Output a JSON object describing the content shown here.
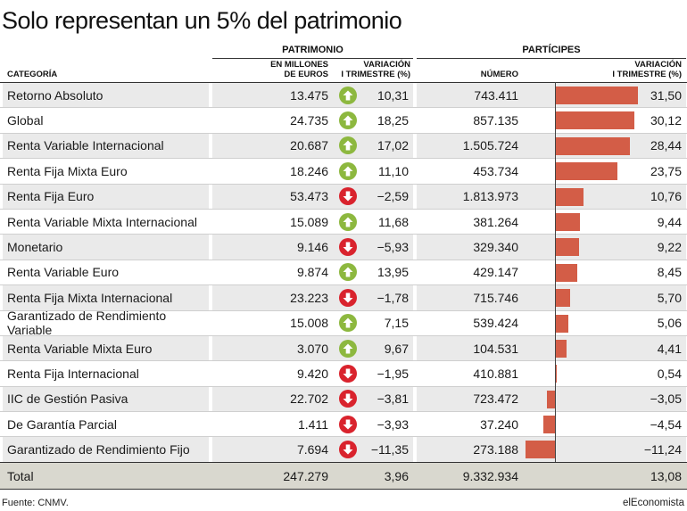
{
  "title": "Solo representan un 5% del patrimonio",
  "headers": {
    "group_patrimonio": "PATRIMONIO",
    "group_participes": "PARTÍCIPES",
    "categoria": "CATEGORÍA",
    "millones_l1": "EN MILLONES",
    "millones_l2": "DE EUROS",
    "variacion_l1": "VARIACIÓN",
    "variacion_l2": "I TRIMESTRE (%)",
    "numero": "NÚMERO",
    "variacion2_l1": "VARIACIÓN",
    "variacion2_l2": "I TRIMESTRE (%)"
  },
  "colors": {
    "bar": "#d35d47",
    "up": "#8db83f",
    "down": "#d9232d",
    "total_bg": "#d9d8cf",
    "alt_row": "#eaeaea"
  },
  "icons": {
    "up": "arrow-up-icon",
    "down": "arrow-down-icon"
  },
  "chart_data": {
    "type": "table",
    "columns": [
      "Categoría",
      "Patrimonio en millones de euros",
      "Variación I trimestre (%)",
      "Partícipes número",
      "Partícipes variación I trimestre (%)"
    ],
    "bar_column": "Partícipes variación I trimestre (%)",
    "rows": [
      {
        "categoria": "Retorno Absoluto",
        "millones": "13.475",
        "var_pat": "10,31",
        "dir": "up",
        "participes": "743.411",
        "var_par": "31,50",
        "var_par_value": 31.5
      },
      {
        "categoria": "Global",
        "millones": "24.735",
        "var_pat": "18,25",
        "dir": "up",
        "participes": "857.135",
        "var_par": "30,12",
        "var_par_value": 30.12
      },
      {
        "categoria": "Renta Variable Internacional",
        "millones": "20.687",
        "var_pat": "17,02",
        "dir": "up",
        "participes": "1.505.724",
        "var_par": "28,44",
        "var_par_value": 28.44
      },
      {
        "categoria": "Renta Fija Mixta Euro",
        "millones": "18.246",
        "var_pat": "11,10",
        "dir": "up",
        "participes": "453.734",
        "var_par": "23,75",
        "var_par_value": 23.75
      },
      {
        "categoria": "Renta Fija Euro",
        "millones": "53.473",
        "var_pat": "−2,59",
        "dir": "down",
        "participes": "1.813.973",
        "var_par": "10,76",
        "var_par_value": 10.76
      },
      {
        "categoria": "Renta Variable Mixta Internacional",
        "millones": "15.089",
        "var_pat": "11,68",
        "dir": "up",
        "participes": "381.264",
        "var_par": "9,44",
        "var_par_value": 9.44
      },
      {
        "categoria": "Monetario",
        "millones": "9.146",
        "var_pat": "−5,93",
        "dir": "down",
        "participes": "329.340",
        "var_par": "9,22",
        "var_par_value": 9.22
      },
      {
        "categoria": "Renta Variable Euro",
        "millones": "9.874",
        "var_pat": "13,95",
        "dir": "up",
        "participes": "429.147",
        "var_par": "8,45",
        "var_par_value": 8.45
      },
      {
        "categoria": "Renta Fija Mixta Internacional",
        "millones": "23.223",
        "var_pat": "−1,78",
        "dir": "down",
        "participes": "715.746",
        "var_par": "5,70",
        "var_par_value": 5.7
      },
      {
        "categoria": "Garantizado de Rendimiento Variable",
        "millones": "15.008",
        "var_pat": "7,15",
        "dir": "up",
        "participes": "539.424",
        "var_par": "5,06",
        "var_par_value": 5.06
      },
      {
        "categoria": "Renta Variable Mixta Euro",
        "millones": "3.070",
        "var_pat": "9,67",
        "dir": "up",
        "participes": "104.531",
        "var_par": "4,41",
        "var_par_value": 4.41
      },
      {
        "categoria": "Renta Fija Internacional",
        "millones": "9.420",
        "var_pat": "−1,95",
        "dir": "down",
        "participes": "410.881",
        "var_par": "0,54",
        "var_par_value": 0.54
      },
      {
        "categoria": "IIC de Gestión Pasiva",
        "millones": "22.702",
        "var_pat": "−3,81",
        "dir": "down",
        "participes": "723.472",
        "var_par": "−3,05",
        "var_par_value": -3.05
      },
      {
        "categoria": "De Garantía Parcial",
        "millones": "1.411",
        "var_pat": "−3,93",
        "dir": "down",
        "participes": "37.240",
        "var_par": "−4,54",
        "var_par_value": -4.54
      },
      {
        "categoria": "Garantizado de Rendimiento Fijo",
        "millones": "7.694",
        "var_pat": "−11,35",
        "dir": "down",
        "participes": "273.188",
        "var_par": "−11,24",
        "var_par_value": -11.24
      }
    ],
    "total": {
      "categoria": "Total",
      "millones": "247.279",
      "var_pat": "3,96",
      "participes": "9.332.934",
      "var_par": "13,08"
    },
    "bar_range": [
      -11.24,
      31.5
    ]
  },
  "footer": {
    "source": "Fuente: CNMV.",
    "brand": "elEconomista"
  }
}
